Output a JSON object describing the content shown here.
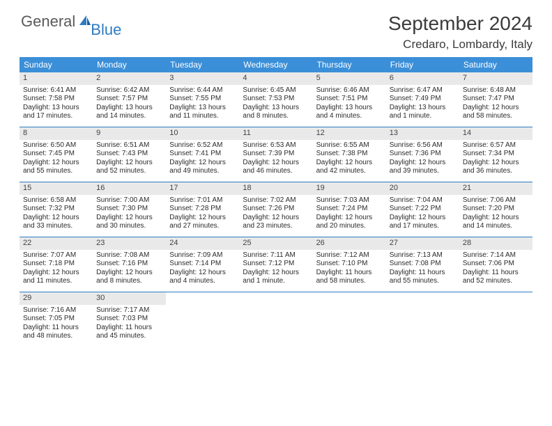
{
  "brand": {
    "part1": "General",
    "part2": "Blue"
  },
  "title": "September 2024",
  "location": "Credaro, Lombardy, Italy",
  "colors": {
    "header_bar": "#3b8fd8",
    "week_border": "#2c7bc4",
    "daynum_bg": "#e9e9e9",
    "brand_gray": "#5a5a5a",
    "brand_blue": "#2c7bc4",
    "text": "#2a2a2a",
    "title_text": "#3b3b3b"
  },
  "dow": [
    "Sunday",
    "Monday",
    "Tuesday",
    "Wednesday",
    "Thursday",
    "Friday",
    "Saturday"
  ],
  "weeks": [
    [
      {
        "n": "1",
        "sr": "Sunrise: 6:41 AM",
        "ss": "Sunset: 7:58 PM",
        "dl1": "Daylight: 13 hours",
        "dl2": "and 17 minutes."
      },
      {
        "n": "2",
        "sr": "Sunrise: 6:42 AM",
        "ss": "Sunset: 7:57 PM",
        "dl1": "Daylight: 13 hours",
        "dl2": "and 14 minutes."
      },
      {
        "n": "3",
        "sr": "Sunrise: 6:44 AM",
        "ss": "Sunset: 7:55 PM",
        "dl1": "Daylight: 13 hours",
        "dl2": "and 11 minutes."
      },
      {
        "n": "4",
        "sr": "Sunrise: 6:45 AM",
        "ss": "Sunset: 7:53 PM",
        "dl1": "Daylight: 13 hours",
        "dl2": "and 8 minutes."
      },
      {
        "n": "5",
        "sr": "Sunrise: 6:46 AM",
        "ss": "Sunset: 7:51 PM",
        "dl1": "Daylight: 13 hours",
        "dl2": "and 4 minutes."
      },
      {
        "n": "6",
        "sr": "Sunrise: 6:47 AM",
        "ss": "Sunset: 7:49 PM",
        "dl1": "Daylight: 13 hours",
        "dl2": "and 1 minute."
      },
      {
        "n": "7",
        "sr": "Sunrise: 6:48 AM",
        "ss": "Sunset: 7:47 PM",
        "dl1": "Daylight: 12 hours",
        "dl2": "and 58 minutes."
      }
    ],
    [
      {
        "n": "8",
        "sr": "Sunrise: 6:50 AM",
        "ss": "Sunset: 7:45 PM",
        "dl1": "Daylight: 12 hours",
        "dl2": "and 55 minutes."
      },
      {
        "n": "9",
        "sr": "Sunrise: 6:51 AM",
        "ss": "Sunset: 7:43 PM",
        "dl1": "Daylight: 12 hours",
        "dl2": "and 52 minutes."
      },
      {
        "n": "10",
        "sr": "Sunrise: 6:52 AM",
        "ss": "Sunset: 7:41 PM",
        "dl1": "Daylight: 12 hours",
        "dl2": "and 49 minutes."
      },
      {
        "n": "11",
        "sr": "Sunrise: 6:53 AM",
        "ss": "Sunset: 7:39 PM",
        "dl1": "Daylight: 12 hours",
        "dl2": "and 46 minutes."
      },
      {
        "n": "12",
        "sr": "Sunrise: 6:55 AM",
        "ss": "Sunset: 7:38 PM",
        "dl1": "Daylight: 12 hours",
        "dl2": "and 42 minutes."
      },
      {
        "n": "13",
        "sr": "Sunrise: 6:56 AM",
        "ss": "Sunset: 7:36 PM",
        "dl1": "Daylight: 12 hours",
        "dl2": "and 39 minutes."
      },
      {
        "n": "14",
        "sr": "Sunrise: 6:57 AM",
        "ss": "Sunset: 7:34 PM",
        "dl1": "Daylight: 12 hours",
        "dl2": "and 36 minutes."
      }
    ],
    [
      {
        "n": "15",
        "sr": "Sunrise: 6:58 AM",
        "ss": "Sunset: 7:32 PM",
        "dl1": "Daylight: 12 hours",
        "dl2": "and 33 minutes."
      },
      {
        "n": "16",
        "sr": "Sunrise: 7:00 AM",
        "ss": "Sunset: 7:30 PM",
        "dl1": "Daylight: 12 hours",
        "dl2": "and 30 minutes."
      },
      {
        "n": "17",
        "sr": "Sunrise: 7:01 AM",
        "ss": "Sunset: 7:28 PM",
        "dl1": "Daylight: 12 hours",
        "dl2": "and 27 minutes."
      },
      {
        "n": "18",
        "sr": "Sunrise: 7:02 AM",
        "ss": "Sunset: 7:26 PM",
        "dl1": "Daylight: 12 hours",
        "dl2": "and 23 minutes."
      },
      {
        "n": "19",
        "sr": "Sunrise: 7:03 AM",
        "ss": "Sunset: 7:24 PM",
        "dl1": "Daylight: 12 hours",
        "dl2": "and 20 minutes."
      },
      {
        "n": "20",
        "sr": "Sunrise: 7:04 AM",
        "ss": "Sunset: 7:22 PM",
        "dl1": "Daylight: 12 hours",
        "dl2": "and 17 minutes."
      },
      {
        "n": "21",
        "sr": "Sunrise: 7:06 AM",
        "ss": "Sunset: 7:20 PM",
        "dl1": "Daylight: 12 hours",
        "dl2": "and 14 minutes."
      }
    ],
    [
      {
        "n": "22",
        "sr": "Sunrise: 7:07 AM",
        "ss": "Sunset: 7:18 PM",
        "dl1": "Daylight: 12 hours",
        "dl2": "and 11 minutes."
      },
      {
        "n": "23",
        "sr": "Sunrise: 7:08 AM",
        "ss": "Sunset: 7:16 PM",
        "dl1": "Daylight: 12 hours",
        "dl2": "and 8 minutes."
      },
      {
        "n": "24",
        "sr": "Sunrise: 7:09 AM",
        "ss": "Sunset: 7:14 PM",
        "dl1": "Daylight: 12 hours",
        "dl2": "and 4 minutes."
      },
      {
        "n": "25",
        "sr": "Sunrise: 7:11 AM",
        "ss": "Sunset: 7:12 PM",
        "dl1": "Daylight: 12 hours",
        "dl2": "and 1 minute."
      },
      {
        "n": "26",
        "sr": "Sunrise: 7:12 AM",
        "ss": "Sunset: 7:10 PM",
        "dl1": "Daylight: 11 hours",
        "dl2": "and 58 minutes."
      },
      {
        "n": "27",
        "sr": "Sunrise: 7:13 AM",
        "ss": "Sunset: 7:08 PM",
        "dl1": "Daylight: 11 hours",
        "dl2": "and 55 minutes."
      },
      {
        "n": "28",
        "sr": "Sunrise: 7:14 AM",
        "ss": "Sunset: 7:06 PM",
        "dl1": "Daylight: 11 hours",
        "dl2": "and 52 minutes."
      }
    ],
    [
      {
        "n": "29",
        "sr": "Sunrise: 7:16 AM",
        "ss": "Sunset: 7:05 PM",
        "dl1": "Daylight: 11 hours",
        "dl2": "and 48 minutes."
      },
      {
        "n": "30",
        "sr": "Sunrise: 7:17 AM",
        "ss": "Sunset: 7:03 PM",
        "dl1": "Daylight: 11 hours",
        "dl2": "and 45 minutes."
      },
      {
        "empty": true
      },
      {
        "empty": true
      },
      {
        "empty": true
      },
      {
        "empty": true
      },
      {
        "empty": true
      }
    ]
  ]
}
